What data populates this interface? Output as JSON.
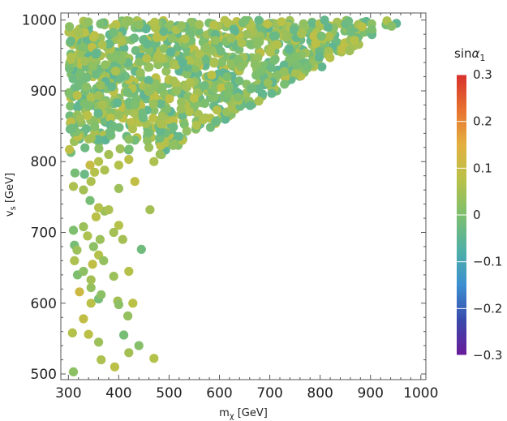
{
  "chart_data": {
    "type": "scatter",
    "xlabel": "m",
    "xlabel_sub": "χ",
    "xlabel_unit": " [GeV]",
    "ylabel": "v",
    "ylabel_sub": "s",
    "ylabel_unit": " [GeV]",
    "xlim": [
      285,
      1010
    ],
    "ylim": [
      492,
      1010
    ],
    "xticks": [
      300,
      400,
      500,
      600,
      700,
      800,
      900,
      1000
    ],
    "yticks": [
      500,
      600,
      700,
      800,
      900,
      1000
    ],
    "grid": false,
    "colorbar": {
      "title": "sin",
      "title_symbol": "α",
      "title_sub": "1",
      "range": [
        -0.3,
        0.3
      ],
      "ticks": [
        "0.3",
        "0.2",
        "0.1",
        "0",
        "−0.1",
        "−0.2",
        "−0.3"
      ],
      "colors": [
        "#6a1b9a",
        "#3949ab",
        "#3a8fd1",
        "#4fb0a6",
        "#7dbf6e",
        "#b8c148",
        "#e3b03f",
        "#e8712f",
        "#d7302b"
      ]
    },
    "sparse_points": [
      [
        310,
        503,
        0.02
      ],
      [
        365,
        520,
        0.06
      ],
      [
        392,
        510,
        0.08
      ],
      [
        420,
        530,
        0.05
      ],
      [
        470,
        522,
        0.07
      ],
      [
        308,
        558,
        0.07
      ],
      [
        340,
        556,
        0.08
      ],
      [
        360,
        545,
        0.04
      ],
      [
        410,
        555,
        -0.01
      ],
      [
        440,
        540,
        0.01
      ],
      [
        330,
        578,
        0.09
      ],
      [
        345,
        600,
        0.08
      ],
      [
        360,
        606,
        -0.01
      ],
      [
        398,
        603,
        0.05
      ],
      [
        418,
        582,
        0.03
      ],
      [
        322,
        616,
        0.11
      ],
      [
        345,
        622,
        0.03
      ],
      [
        365,
        612,
        0.02
      ],
      [
        400,
        598,
        0.02
      ],
      [
        428,
        600,
        0.08
      ],
      [
        318,
        640,
        0.0
      ],
      [
        345,
        633,
        0.05
      ],
      [
        390,
        638,
        0.04
      ],
      [
        420,
        645,
        0.07
      ],
      [
        348,
        655,
        0.09
      ],
      [
        330,
        645,
        0.02
      ],
      [
        312,
        660,
        0.06
      ],
      [
        360,
        668,
        0.07
      ],
      [
        370,
        660,
        0.03
      ],
      [
        312,
        682,
        -0.01
      ],
      [
        317,
        675,
        0.04
      ],
      [
        350,
        680,
        0.02
      ],
      [
        363,
        690,
        0.04
      ],
      [
        408,
        690,
        0.05
      ],
      [
        445,
        676,
        -0.02
      ],
      [
        310,
        703,
        0.0
      ],
      [
        330,
        708,
        0.04
      ],
      [
        338,
        695,
        0.06
      ],
      [
        390,
        700,
        0.05
      ],
      [
        400,
        710,
        0.07
      ],
      [
        355,
        722,
        0.08
      ],
      [
        372,
        730,
        0.04
      ],
      [
        360,
        735,
        0.07
      ],
      [
        380,
        732,
        0.06
      ],
      [
        343,
        745,
        -0.01
      ],
      [
        462,
        732,
        0.05
      ],
      [
        310,
        765,
        0.06
      ],
      [
        330,
        760,
        0.05
      ],
      [
        345,
        772,
        0.06
      ],
      [
        400,
        762,
        0.04
      ],
      [
        432,
        772,
        0.09
      ],
      [
        313,
        784,
        -0.01
      ],
      [
        332,
        782,
        -0.03
      ],
      [
        352,
        785,
        0.07
      ],
      [
        372,
        788,
        0.06
      ],
      [
        400,
        795,
        0.07
      ],
      [
        305,
        813,
        -0.02
      ],
      [
        322,
        832,
        -0.03
      ],
      [
        343,
        795,
        0.1
      ],
      [
        360,
        800,
        0.07
      ],
      [
        380,
        810,
        0.05
      ],
      [
        420,
        803,
        0.08
      ],
      [
        470,
        800,
        0.06
      ],
      [
        460,
        820,
        0.04
      ],
      [
        485,
        810,
        0.03
      ]
    ]
  }
}
